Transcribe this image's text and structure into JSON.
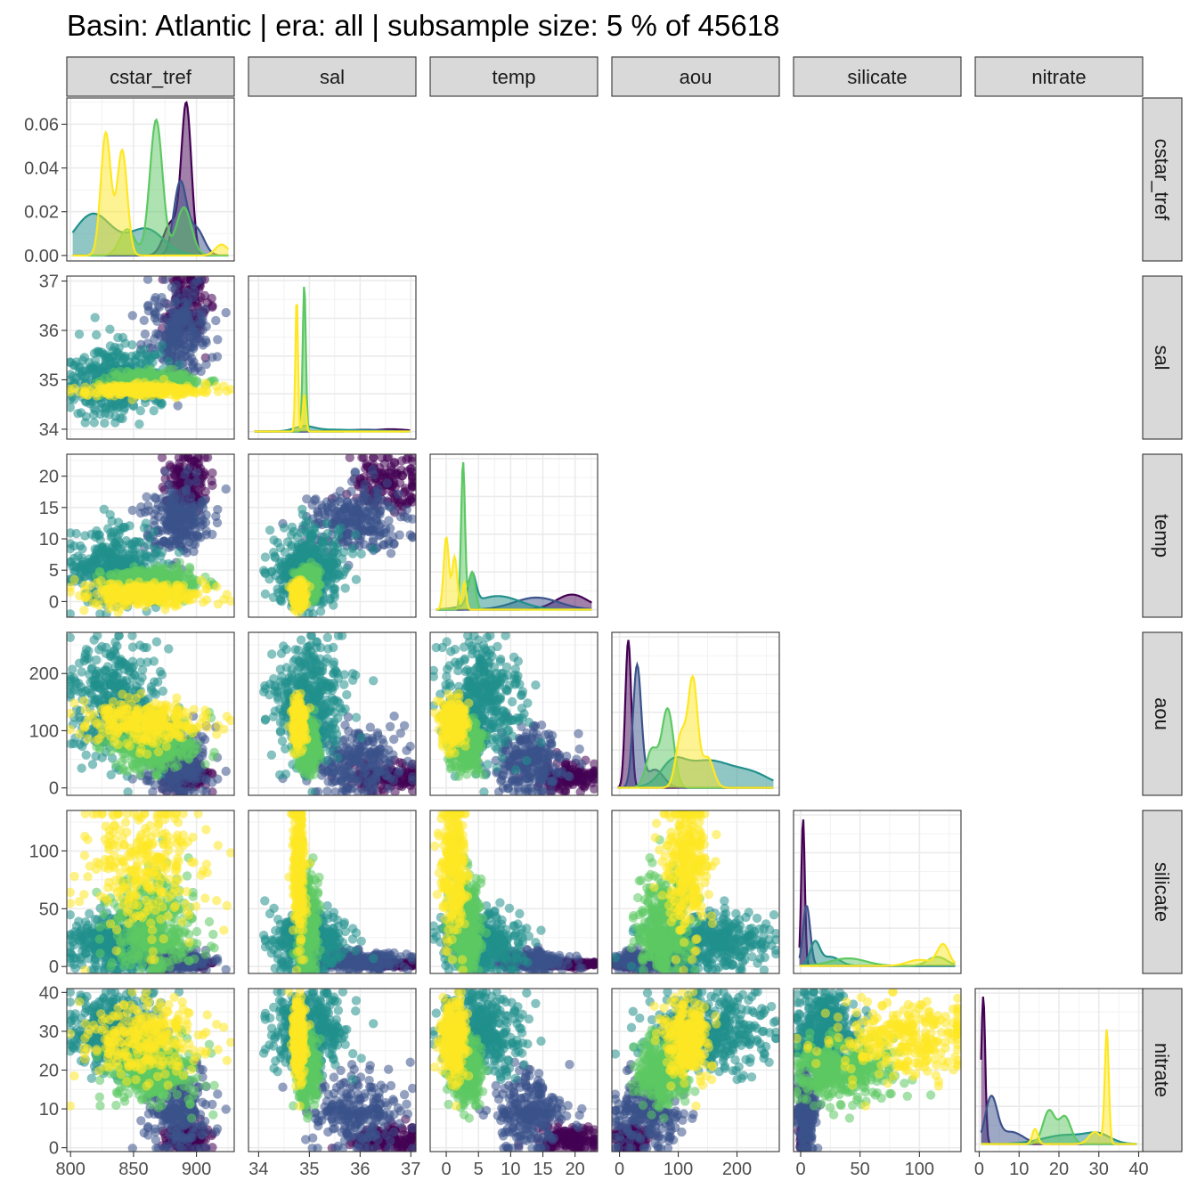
{
  "title": "Basin: Atlantic | era: all | subsample size: 5 % of 45618",
  "chart_data": {
    "type": "scatter",
    "layout": "pairs-lower-triangle",
    "variables": [
      "cstar_tref",
      "sal",
      "temp",
      "aou",
      "silicate",
      "nitrate"
    ],
    "diagonal": "density",
    "color_scale": "viridis",
    "color_stops": [
      "#440154",
      "#3b528b",
      "#21908c",
      "#5dc863",
      "#fde725"
    ],
    "colour_classes": 5,
    "point_alpha": 0.55,
    "grid": true,
    "axes": {
      "cstar_tref": {
        "range": [
          797,
          930
        ],
        "ticks": [
          800,
          850,
          900
        ]
      },
      "sal": {
        "range": [
          33.8,
          37.1
        ],
        "ticks": [
          34,
          35,
          36,
          37
        ]
      },
      "temp": {
        "range": [
          -2.5,
          23.5
        ],
        "ticks": [
          0,
          5,
          10,
          15,
          20
        ]
      },
      "aou": {
        "range": [
          -13,
          272
        ],
        "ticks": [
          0,
          100,
          200
        ]
      },
      "silicate": {
        "range": [
          -6,
          135
        ],
        "ticks": [
          0,
          50,
          100
        ]
      },
      "nitrate": {
        "range": [
          -1,
          41
        ],
        "ticks": [
          0,
          10,
          20,
          30,
          40
        ]
      }
    },
    "density_y_axis": {
      "range": [
        -0.0025,
        0.072
      ],
      "ticks": [
        "0.00",
        "0.02",
        "0.04",
        "0.06"
      ]
    },
    "densities": {
      "cstar_tref": [
        {
          "colour": 0,
          "peaks": [
            [
              892,
              4,
              0.068
            ],
            [
              880,
              6,
              0.015
            ]
          ]
        },
        {
          "colour": 1,
          "peaks": [
            [
              887,
              5,
              0.033
            ],
            [
              900,
              6,
              0.012
            ]
          ]
        },
        {
          "colour": 2,
          "peaks": [
            [
              818,
              15,
              0.019
            ],
            [
              860,
              14,
              0.012
            ]
          ]
        },
        {
          "colour": 3,
          "peaks": [
            [
              868,
              5,
              0.062
            ],
            [
              890,
              6,
              0.022
            ],
            [
              845,
              6,
              0.012
            ]
          ]
        },
        {
          "colour": 4,
          "peaks": [
            [
              828,
              4,
              0.056
            ],
            [
              841,
              4,
              0.048
            ],
            [
              920,
              5,
              0.005
            ]
          ]
        }
      ],
      "sal": [
        {
          "colour": 0,
          "peaks": [
            [
              36.6,
              0.35,
              0.015
            ]
          ]
        },
        {
          "colour": 1,
          "peaks": [
            [
              36.1,
              0.45,
              0.012
            ]
          ]
        },
        {
          "colour": 2,
          "peaks": [
            [
              34.9,
              0.2,
              0.03
            ],
            [
              35.5,
              0.5,
              0.012
            ]
          ]
        },
        {
          "colour": 3,
          "peaks": [
            [
              34.9,
              0.03,
              0.98
            ]
          ]
        },
        {
          "colour": 4,
          "peaks": [
            [
              34.75,
              0.025,
              0.9
            ],
            [
              34.9,
              0.03,
              0.25
            ]
          ]
        }
      ],
      "temp": [
        {
          "colour": 0,
          "peaks": [
            [
              19.5,
              2.5,
              0.1
            ]
          ]
        },
        {
          "colour": 1,
          "peaks": [
            [
              14,
              3.5,
              0.08
            ]
          ]
        },
        {
          "colour": 2,
          "peaks": [
            [
              8,
              3.5,
              0.09
            ],
            [
              4,
              0.6,
              0.2
            ]
          ]
        },
        {
          "colour": 3,
          "peaks": [
            [
              2.6,
              0.3,
              0.98
            ],
            [
              4,
              0.5,
              0.25
            ]
          ]
        },
        {
          "colour": 4,
          "peaks": [
            [
              0,
              0.4,
              0.48
            ],
            [
              1.3,
              0.4,
              0.35
            ],
            [
              2.8,
              0.3,
              0.18
            ]
          ]
        }
      ],
      "aou": [
        {
          "colour": 0,
          "peaks": [
            [
              15,
              5,
              0.98
            ]
          ]
        },
        {
          "colour": 1,
          "peaks": [
            [
              30,
              7,
              0.8
            ],
            [
              60,
              15,
              0.12
            ]
          ]
        },
        {
          "colour": 2,
          "peaks": [
            [
              150,
              45,
              0.18
            ],
            [
              230,
              30,
              0.07
            ],
            [
              90,
              20,
              0.12
            ]
          ]
        },
        {
          "colour": 3,
          "peaks": [
            [
              82,
              10,
              0.52
            ],
            [
              55,
              10,
              0.25
            ]
          ]
        },
        {
          "colour": 4,
          "peaks": [
            [
              125,
              8,
              0.7
            ],
            [
              105,
              9,
              0.35
            ],
            [
              150,
              10,
              0.2
            ]
          ]
        }
      ],
      "silicate": [
        {
          "colour": 0,
          "peaks": [
            [
              2,
              1.5,
              0.98
            ]
          ]
        },
        {
          "colour": 1,
          "peaks": [
            [
              5,
              3,
              0.4
            ]
          ]
        },
        {
          "colour": 2,
          "peaks": [
            [
              12,
              4,
              0.15
            ],
            [
              25,
              8,
              0.06
            ]
          ]
        },
        {
          "colour": 3,
          "peaks": [
            [
              40,
              15,
              0.05
            ],
            [
              115,
              8,
              0.06
            ]
          ]
        },
        {
          "colour": 4,
          "peaks": [
            [
              120,
              5,
              0.14
            ],
            [
              100,
              10,
              0.04
            ]
          ]
        }
      ],
      "nitrate": [
        {
          "colour": 0,
          "peaks": [
            [
              1,
              0.5,
              0.98
            ]
          ]
        },
        {
          "colour": 1,
          "peaks": [
            [
              3,
              1.5,
              0.3
            ],
            [
              8,
              3,
              0.08
            ]
          ]
        },
        {
          "colour": 2,
          "peaks": [
            [
              22,
              6,
              0.06
            ],
            [
              30,
              3,
              0.05
            ]
          ]
        },
        {
          "colour": 3,
          "peaks": [
            [
              17.5,
              1.5,
              0.22
            ],
            [
              21.5,
              1.5,
              0.18
            ]
          ]
        },
        {
          "colour": 4,
          "peaks": [
            [
              32,
              0.5,
              0.75
            ],
            [
              14,
              0.7,
              0.1
            ],
            [
              29,
              1.5,
              0.08
            ]
          ]
        }
      ]
    },
    "scatter_clusters": [
      {
        "colour": 0,
        "share": 0.1,
        "mean": {
          "cstar_tref": 893,
          "sal": 36.5,
          "temp": 18.5,
          "aou": 18,
          "silicate": 2,
          "nitrate": 2
        },
        "sd": {
          "cstar_tref": 9,
          "sal": 0.4,
          "temp": 2.5,
          "aou": 12,
          "silicate": 1.2,
          "nitrate": 1.8
        }
      },
      {
        "colour": 1,
        "share": 0.17,
        "mean": {
          "cstar_tref": 885,
          "sal": 35.9,
          "temp": 13,
          "aou": 45,
          "silicate": 5,
          "nitrate": 9
        },
        "sd": {
          "cstar_tref": 12,
          "sal": 0.5,
          "temp": 3,
          "aou": 30,
          "silicate": 4,
          "nitrate": 5
        }
      },
      {
        "colour": 2,
        "share": 0.28,
        "mean": {
          "cstar_tref": 835,
          "sal": 35,
          "temp": 5.5,
          "aou": 150,
          "silicate": 22,
          "nitrate": 30
        },
        "sd": {
          "cstar_tref": 18,
          "sal": 0.35,
          "temp": 3,
          "aou": 50,
          "silicate": 12,
          "nitrate": 5
        }
      },
      {
        "colour": 3,
        "share": 0.25,
        "mean": {
          "cstar_tref": 865,
          "sal": 34.95,
          "temp": 3.2,
          "aou": 75,
          "silicate": 35,
          "nitrate": 20
        },
        "sd": {
          "cstar_tref": 18,
          "sal": 0.1,
          "temp": 1.2,
          "aou": 20,
          "silicate": 22,
          "nitrate": 4
        }
      },
      {
        "colour": 4,
        "share": 0.2,
        "mean": {
          "cstar_tref": 858,
          "sal": 34.78,
          "temp": 1.2,
          "aou": 115,
          "silicate": 90,
          "nitrate": 28
        },
        "sd": {
          "cstar_tref": 25,
          "sal": 0.06,
          "temp": 1,
          "aou": 20,
          "silicate": 30,
          "nitrate": 5
        }
      }
    ]
  }
}
